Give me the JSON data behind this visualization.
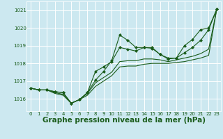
{
  "background_color": "#cce8f0",
  "grid_color": "#ffffff",
  "line_color": "#1a5c1a",
  "marker_color": "#1a5c1a",
  "xlabel": "Graphe pression niveau de la mer (hPa)",
  "xlabel_fontsize": 7.5,
  "xlabel_bold": true,
  "xlim": [
    -0.5,
    23.5
  ],
  "ylim": [
    1015.3,
    1021.5
  ],
  "yticks": [
    1016,
    1017,
    1018,
    1019,
    1020,
    1021
  ],
  "xticks": [
    0,
    1,
    2,
    3,
    4,
    5,
    6,
    7,
    8,
    9,
    10,
    11,
    12,
    13,
    14,
    15,
    16,
    17,
    18,
    19,
    20,
    21,
    22,
    23
  ],
  "tick_fontsize": 5.0,
  "lines": [
    {
      "x": [
        0,
        1,
        2,
        3,
        4,
        5,
        6,
        7,
        8,
        9,
        10,
        11,
        12,
        13,
        14,
        15,
        16,
        17,
        18,
        19,
        20,
        21,
        22,
        23
      ],
      "y": [
        1016.6,
        1016.5,
        1016.5,
        1016.4,
        1016.35,
        1015.75,
        1015.95,
        1016.35,
        1017.05,
        1017.55,
        1018.15,
        1019.6,
        1019.3,
        1018.9,
        1018.9,
        1018.9,
        1018.5,
        1018.3,
        1018.3,
        1019.0,
        1019.35,
        1019.9,
        1020.0,
        1021.05
      ],
      "has_markers": true
    },
    {
      "x": [
        0,
        1,
        2,
        3,
        4,
        5,
        6,
        7,
        8,
        9,
        10,
        11,
        12,
        13,
        14,
        15,
        16,
        17,
        18,
        19,
        20,
        21,
        22,
        23
      ],
      "y": [
        1016.6,
        1016.5,
        1016.5,
        1016.4,
        1016.35,
        1015.75,
        1015.95,
        1016.35,
        1017.55,
        1017.8,
        1018.1,
        1018.9,
        1018.8,
        1018.7,
        1018.9,
        1018.85,
        1018.5,
        1018.25,
        1018.3,
        1018.6,
        1018.9,
        1019.3,
        1019.9,
        1021.05
      ],
      "has_markers": true
    },
    {
      "x": [
        0,
        1,
        2,
        3,
        4,
        5,
        6,
        7,
        8,
        9,
        10,
        11,
        12,
        13,
        14,
        15,
        16,
        17,
        18,
        19,
        20,
        21,
        22,
        23
      ],
      "y": [
        1016.6,
        1016.5,
        1016.5,
        1016.35,
        1016.25,
        1015.75,
        1015.95,
        1016.3,
        1016.9,
        1017.2,
        1017.5,
        1018.1,
        1018.15,
        1018.15,
        1018.25,
        1018.25,
        1018.2,
        1018.1,
        1018.2,
        1018.3,
        1018.4,
        1018.55,
        1018.8,
        1021.05
      ],
      "has_markers": false
    },
    {
      "x": [
        0,
        1,
        2,
        3,
        4,
        5,
        6,
        7,
        8,
        9,
        10,
        11,
        12,
        13,
        14,
        15,
        16,
        17,
        18,
        19,
        20,
        21,
        22,
        23
      ],
      "y": [
        1016.6,
        1016.5,
        1016.5,
        1016.3,
        1016.2,
        1015.75,
        1015.95,
        1016.2,
        1016.7,
        1017.0,
        1017.3,
        1017.8,
        1017.85,
        1017.85,
        1017.95,
        1018.0,
        1018.0,
        1018.0,
        1018.05,
        1018.1,
        1018.2,
        1018.3,
        1018.45,
        1021.05
      ],
      "has_markers": false
    }
  ]
}
